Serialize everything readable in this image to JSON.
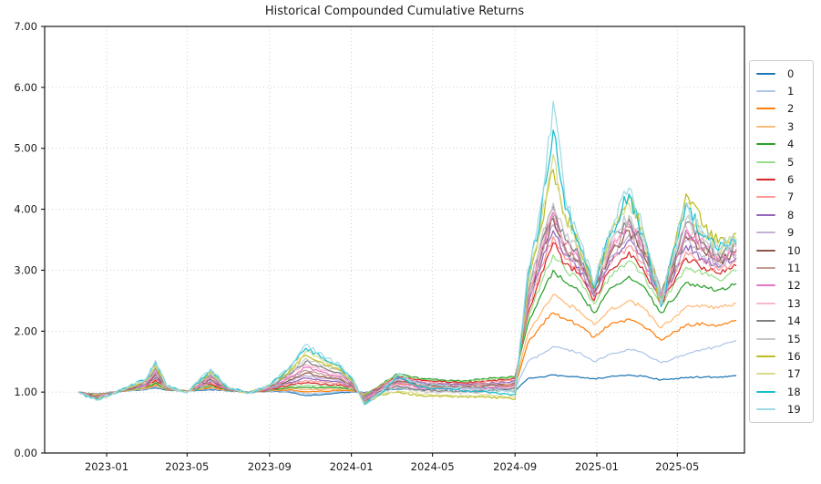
{
  "chart_data": {
    "type": "line",
    "title": "Historical Compounded Cumulative Returns",
    "xlabel": "",
    "ylabel": "",
    "ylim": [
      0,
      7
    ],
    "grid": "dotted",
    "legend_position": "right-outside",
    "yticks": [
      "0.00",
      "1.00",
      "2.00",
      "3.00",
      "4.00",
      "5.00",
      "6.00",
      "7.00"
    ],
    "ytick_values": [
      0,
      1,
      2,
      3,
      4,
      5,
      6,
      7
    ],
    "xticks": [
      {
        "label": "2023-01",
        "date": "2023-01-01"
      },
      {
        "label": "2023-05",
        "date": "2023-05-01"
      },
      {
        "label": "2023-09",
        "date": "2023-09-01"
      },
      {
        "label": "2024-01",
        "date": "2024-01-01"
      },
      {
        "label": "2024-05",
        "date": "2024-05-01"
      },
      {
        "label": "2024-09",
        "date": "2024-09-01"
      },
      {
        "label": "2025-01",
        "date": "2025-01-01"
      },
      {
        "label": "2025-05",
        "date": "2025-05-01"
      }
    ],
    "x": [
      "2022-11-20",
      "2022-12-05",
      "2022-12-20",
      "2023-01-10",
      "2023-02-01",
      "2023-03-01",
      "2023-03-15",
      "2023-04-01",
      "2023-05-01",
      "2023-06-05",
      "2023-07-01",
      "2023-08-01",
      "2023-09-01",
      "2023-10-01",
      "2023-10-25",
      "2023-11-20",
      "2023-12-15",
      "2024-01-05",
      "2024-01-20",
      "2024-02-15",
      "2024-03-10",
      "2024-04-15",
      "2024-05-15",
      "2024-06-15",
      "2024-07-15",
      "2024-08-15",
      "2024-09-01",
      "2024-09-20",
      "2024-10-10",
      "2024-10-28",
      "2024-11-15",
      "2024-12-05",
      "2024-12-28",
      "2025-01-20",
      "2025-02-18",
      "2025-03-10",
      "2025-04-07",
      "2025-05-14",
      "2025-06-10",
      "2025-07-01",
      "2025-07-28"
    ],
    "series": [
      {
        "name": "0",
        "color": "#1f77b4",
        "values": [
          1.0,
          0.98,
          0.97,
          1.0,
          1.02,
          1.04,
          1.07,
          1.03,
          1.02,
          1.04,
          1.02,
          1.0,
          1.01,
          1.0,
          0.94,
          0.96,
          0.99,
          1.0,
          0.99,
          1.03,
          1.05,
          1.04,
          1.05,
          1.06,
          1.07,
          1.05,
          1.02,
          1.22,
          1.25,
          1.28,
          1.26,
          1.25,
          1.22,
          1.25,
          1.28,
          1.26,
          1.2,
          1.24,
          1.25,
          1.24,
          1.27
        ]
      },
      {
        "name": "1",
        "color": "#aec7e8",
        "values": [
          1.0,
          0.977,
          0.964,
          0.998,
          1.023,
          1.049,
          1.09,
          1.034,
          1.018,
          1.056,
          1.023,
          0.999,
          1.015,
          1.019,
          0.972,
          0.986,
          1.01,
          1.009,
          0.978,
          1.05,
          1.09,
          1.06,
          1.07,
          1.08,
          1.09,
          1.07,
          1.05,
          1.5,
          1.62,
          1.75,
          1.7,
          1.65,
          1.5,
          1.62,
          1.7,
          1.65,
          1.48,
          1.62,
          1.7,
          1.75,
          1.85
        ]
      },
      {
        "name": "2",
        "color": "#ff7f0e",
        "values": [
          1.0,
          0.974,
          0.959,
          0.997,
          1.026,
          1.058,
          1.11,
          1.037,
          1.017,
          1.071,
          1.026,
          0.998,
          1.021,
          1.038,
          1.005,
          1.013,
          1.031,
          1.018,
          0.967,
          1.08,
          1.14,
          1.1,
          1.1,
          1.11,
          1.12,
          1.1,
          1.09,
          1.8,
          2.1,
          2.3,
          2.2,
          2.1,
          1.9,
          2.1,
          2.2,
          2.1,
          1.85,
          2.1,
          2.12,
          2.1,
          2.18
        ]
      },
      {
        "name": "3",
        "color": "#ffbb78",
        "values": [
          1.0,
          0.97,
          0.953,
          0.995,
          1.029,
          1.067,
          1.131,
          1.041,
          1.015,
          1.087,
          1.029,
          0.997,
          1.026,
          1.057,
          1.04,
          1.041,
          1.052,
          1.027,
          0.955,
          1.1,
          1.18,
          1.13,
          1.12,
          1.13,
          1.15,
          1.13,
          1.12,
          1.95,
          2.3,
          2.6,
          2.45,
          2.35,
          2.1,
          2.35,
          2.5,
          2.4,
          2.05,
          2.4,
          2.42,
          2.38,
          2.45
        ]
      },
      {
        "name": "4",
        "color": "#2ca02c",
        "values": [
          1.0,
          0.967,
          0.948,
          0.994,
          1.032,
          1.076,
          1.152,
          1.045,
          1.013,
          1.104,
          1.032,
          0.996,
          1.032,
          1.077,
          1.075,
          1.069,
          1.073,
          1.036,
          0.944,
          1.13,
          1.3,
          1.22,
          1.2,
          1.18,
          1.22,
          1.24,
          1.26,
          2.1,
          2.6,
          3.0,
          2.8,
          2.65,
          2.3,
          2.7,
          2.9,
          2.75,
          2.3,
          2.8,
          2.75,
          2.68,
          2.78
        ]
      },
      {
        "name": "5",
        "color": "#98df8a",
        "values": [
          1.0,
          0.964,
          0.942,
          0.992,
          1.035,
          1.085,
          1.174,
          1.048,
          1.012,
          1.12,
          1.035,
          0.995,
          1.037,
          1.097,
          1.112,
          1.098,
          1.095,
          1.045,
          0.933,
          1.12,
          1.28,
          1.2,
          1.18,
          1.16,
          1.2,
          1.22,
          1.24,
          2.2,
          2.8,
          3.25,
          3.0,
          2.85,
          2.45,
          2.9,
          3.15,
          2.95,
          2.42,
          3.05,
          2.95,
          2.85,
          2.98
        ]
      },
      {
        "name": "6",
        "color": "#d62728",
        "values": [
          1.0,
          0.96,
          0.937,
          0.99,
          1.038,
          1.094,
          1.196,
          1.052,
          1.01,
          1.137,
          1.038,
          0.994,
          1.043,
          1.117,
          1.15,
          1.128,
          1.117,
          1.054,
          0.922,
          1.11,
          1.26,
          1.19,
          1.17,
          1.15,
          1.18,
          1.2,
          1.22,
          2.28,
          2.95,
          3.45,
          3.1,
          2.95,
          2.5,
          3.0,
          3.3,
          3.05,
          2.45,
          3.2,
          3.05,
          2.95,
          3.07
        ]
      },
      {
        "name": "7",
        "color": "#ff9896",
        "values": [
          1.0,
          0.957,
          0.932,
          0.989,
          1.041,
          1.103,
          1.218,
          1.056,
          1.009,
          1.154,
          1.041,
          0.993,
          1.048,
          1.138,
          1.189,
          1.159,
          1.139,
          1.063,
          0.911,
          1.1,
          1.24,
          1.17,
          1.15,
          1.13,
          1.16,
          1.18,
          1.2,
          2.35,
          3.05,
          3.55,
          3.18,
          3.0,
          2.55,
          3.08,
          3.4,
          3.12,
          2.48,
          3.3,
          3.12,
          3.0,
          3.15
        ]
      },
      {
        "name": "8",
        "color": "#9467bd",
        "values": [
          1.0,
          0.954,
          0.926,
          0.987,
          1.044,
          1.112,
          1.241,
          1.059,
          1.007,
          1.171,
          1.044,
          0.992,
          1.054,
          1.159,
          1.23,
          1.19,
          1.163,
          1.072,
          0.9,
          1.09,
          1.22,
          1.15,
          1.13,
          1.12,
          1.14,
          1.16,
          1.18,
          2.4,
          3.1,
          3.65,
          3.25,
          3.05,
          2.58,
          3.15,
          3.5,
          3.2,
          2.5,
          3.4,
          3.18,
          3.05,
          3.2
        ]
      },
      {
        "name": "9",
        "color": "#c5b0d5",
        "values": [
          1.0,
          0.951,
          0.921,
          0.986,
          1.047,
          1.122,
          1.264,
          1.063,
          1.006,
          1.189,
          1.047,
          0.99,
          1.06,
          1.181,
          1.272,
          1.223,
          1.186,
          1.082,
          0.89,
          1.08,
          1.2,
          1.13,
          1.11,
          1.1,
          1.12,
          1.14,
          1.16,
          2.45,
          3.2,
          3.75,
          3.3,
          3.1,
          2.6,
          3.2,
          3.58,
          3.25,
          2.52,
          3.48,
          3.24,
          3.1,
          3.25
        ]
      },
      {
        "name": "10",
        "color": "#8c564b",
        "values": [
          1.0,
          0.948,
          0.916,
          0.984,
          1.051,
          1.131,
          1.288,
          1.067,
          1.004,
          1.207,
          1.05,
          0.989,
          1.065,
          1.203,
          1.315,
          1.256,
          1.21,
          1.091,
          0.879,
          1.07,
          1.18,
          1.11,
          1.09,
          1.08,
          1.1,
          1.12,
          1.14,
          2.5,
          3.25,
          3.85,
          3.35,
          3.15,
          2.63,
          3.25,
          3.65,
          3.3,
          2.54,
          3.55,
          3.3,
          3.14,
          3.3
        ]
      },
      {
        "name": "11",
        "color": "#c49c94",
        "values": [
          1.0,
          0.944,
          0.91,
          0.983,
          1.054,
          1.141,
          1.312,
          1.07,
          1.003,
          1.225,
          1.053,
          0.988,
          1.071,
          1.225,
          1.36,
          1.29,
          1.235,
          1.101,
          0.869,
          1.06,
          1.16,
          1.09,
          1.07,
          1.07,
          1.08,
          1.1,
          1.12,
          2.53,
          3.3,
          3.9,
          3.38,
          3.18,
          2.65,
          3.28,
          3.7,
          3.34,
          2.56,
          3.6,
          3.33,
          3.17,
          3.32
        ]
      },
      {
        "name": "12",
        "color": "#e377c2",
        "values": [
          1.0,
          0.941,
          0.905,
          0.981,
          1.057,
          1.15,
          1.336,
          1.074,
          1.001,
          1.243,
          1.056,
          0.987,
          1.077,
          1.248,
          1.406,
          1.325,
          1.26,
          1.11,
          0.859,
          1.05,
          1.14,
          1.07,
          1.06,
          1.05,
          1.06,
          1.08,
          1.1,
          2.56,
          3.35,
          3.95,
          3.42,
          3.2,
          2.67,
          3.32,
          3.75,
          3.38,
          2.58,
          3.66,
          3.37,
          3.2,
          3.35
        ]
      },
      {
        "name": "13",
        "color": "#f7b6d2",
        "values": [
          1.0,
          0.938,
          0.9,
          0.979,
          1.06,
          1.16,
          1.361,
          1.078,
          1.0,
          1.262,
          1.059,
          0.986,
          1.083,
          1.271,
          1.454,
          1.362,
          1.286,
          1.12,
          0.849,
          1.04,
          1.12,
          1.05,
          1.04,
          1.03,
          1.04,
          1.06,
          1.08,
          2.6,
          3.4,
          4.0,
          3.45,
          3.23,
          2.7,
          3.35,
          3.8,
          3.42,
          2.6,
          3.72,
          3.41,
          3.23,
          3.38
        ]
      },
      {
        "name": "14",
        "color": "#7f7f7f",
        "values": [
          1.0,
          0.935,
          0.895,
          0.978,
          1.063,
          1.17,
          1.386,
          1.082,
          0.998,
          1.281,
          1.062,
          0.985,
          1.088,
          1.295,
          1.504,
          1.399,
          1.312,
          1.13,
          0.839,
          1.02,
          1.1,
          1.03,
          1.02,
          1.01,
          1.02,
          1.04,
          1.06,
          2.63,
          3.45,
          4.05,
          3.5,
          3.26,
          2.72,
          3.38,
          3.85,
          3.46,
          2.62,
          3.78,
          3.45,
          3.26,
          3.41
        ]
      },
      {
        "name": "15",
        "color": "#c7c7c7",
        "values": [
          1.0,
          0.932,
          0.89,
          0.976,
          1.067,
          1.18,
          1.412,
          1.085,
          0.997,
          1.3,
          1.065,
          0.984,
          1.094,
          1.319,
          1.555,
          1.437,
          1.339,
          1.14,
          0.829,
          1.0,
          1.08,
          1.01,
          1.0,
          0.99,
          1.0,
          1.02,
          1.04,
          2.66,
          3.5,
          4.1,
          3.55,
          3.3,
          2.74,
          3.42,
          3.9,
          3.5,
          2.64,
          3.84,
          3.48,
          3.3,
          3.44
        ]
      },
      {
        "name": "16",
        "color": "#bcbd22",
        "values": [
          1.0,
          0.929,
          0.885,
          0.975,
          1.07,
          1.19,
          1.438,
          1.089,
          0.995,
          1.319,
          1.068,
          0.983,
          1.1,
          1.344,
          1.608,
          1.476,
          1.366,
          1.15,
          0.819,
          0.96,
          1.0,
          0.94,
          0.93,
          0.92,
          0.93,
          0.9,
          0.88,
          2.75,
          3.7,
          4.65,
          3.9,
          3.45,
          2.7,
          3.6,
          4.2,
          3.7,
          2.45,
          4.25,
          3.7,
          3.45,
          3.6
        ]
      },
      {
        "name": "17",
        "color": "#dbdb8d",
        "values": [
          1.0,
          0.926,
          0.88,
          0.973,
          1.073,
          1.2,
          1.465,
          1.093,
          0.994,
          1.339,
          1.071,
          0.982,
          1.106,
          1.369,
          1.663,
          1.516,
          1.394,
          1.16,
          0.81,
          0.97,
          1.02,
          0.96,
          0.95,
          0.94,
          0.95,
          0.93,
          0.92,
          2.8,
          3.8,
          4.9,
          3.85,
          3.4,
          2.72,
          3.55,
          4.1,
          3.62,
          2.5,
          4.05,
          3.6,
          3.38,
          3.5
        ]
      },
      {
        "name": "18",
        "color": "#17becf",
        "values": [
          1.0,
          0.923,
          0.875,
          0.972,
          1.077,
          1.21,
          1.492,
          1.096,
          0.992,
          1.359,
          1.074,
          0.981,
          1.112,
          1.394,
          1.72,
          1.557,
          1.422,
          1.17,
          0.8,
          0.99,
          1.25,
          1.08,
          1.06,
          1.02,
          1.01,
          0.98,
          0.96,
          2.9,
          3.95,
          5.3,
          4.0,
          3.45,
          2.7,
          3.55,
          4.25,
          3.6,
          2.4,
          4.1,
          3.55,
          3.32,
          3.45
        ]
      },
      {
        "name": "19",
        "color": "#9edae5",
        "values": [
          1.0,
          0.92,
          0.87,
          0.97,
          1.08,
          1.22,
          1.52,
          1.1,
          0.99,
          1.38,
          1.08,
          0.98,
          1.12,
          1.42,
          1.78,
          1.6,
          1.45,
          1.18,
          0.79,
          1.0,
          1.3,
          1.12,
          1.1,
          1.06,
          1.05,
          1.02,
          1.0,
          3.0,
          4.1,
          5.77,
          4.15,
          3.55,
          2.75,
          3.65,
          4.35,
          3.7,
          2.45,
          4.1,
          3.6,
          3.38,
          3.5
        ]
      }
    ]
  },
  "colors": {
    "background": "#ffffff",
    "spine": "#000000",
    "grid": "#c9c9c9",
    "tick_text": "#1a1a1a",
    "legend_border": "#cccccc"
  }
}
